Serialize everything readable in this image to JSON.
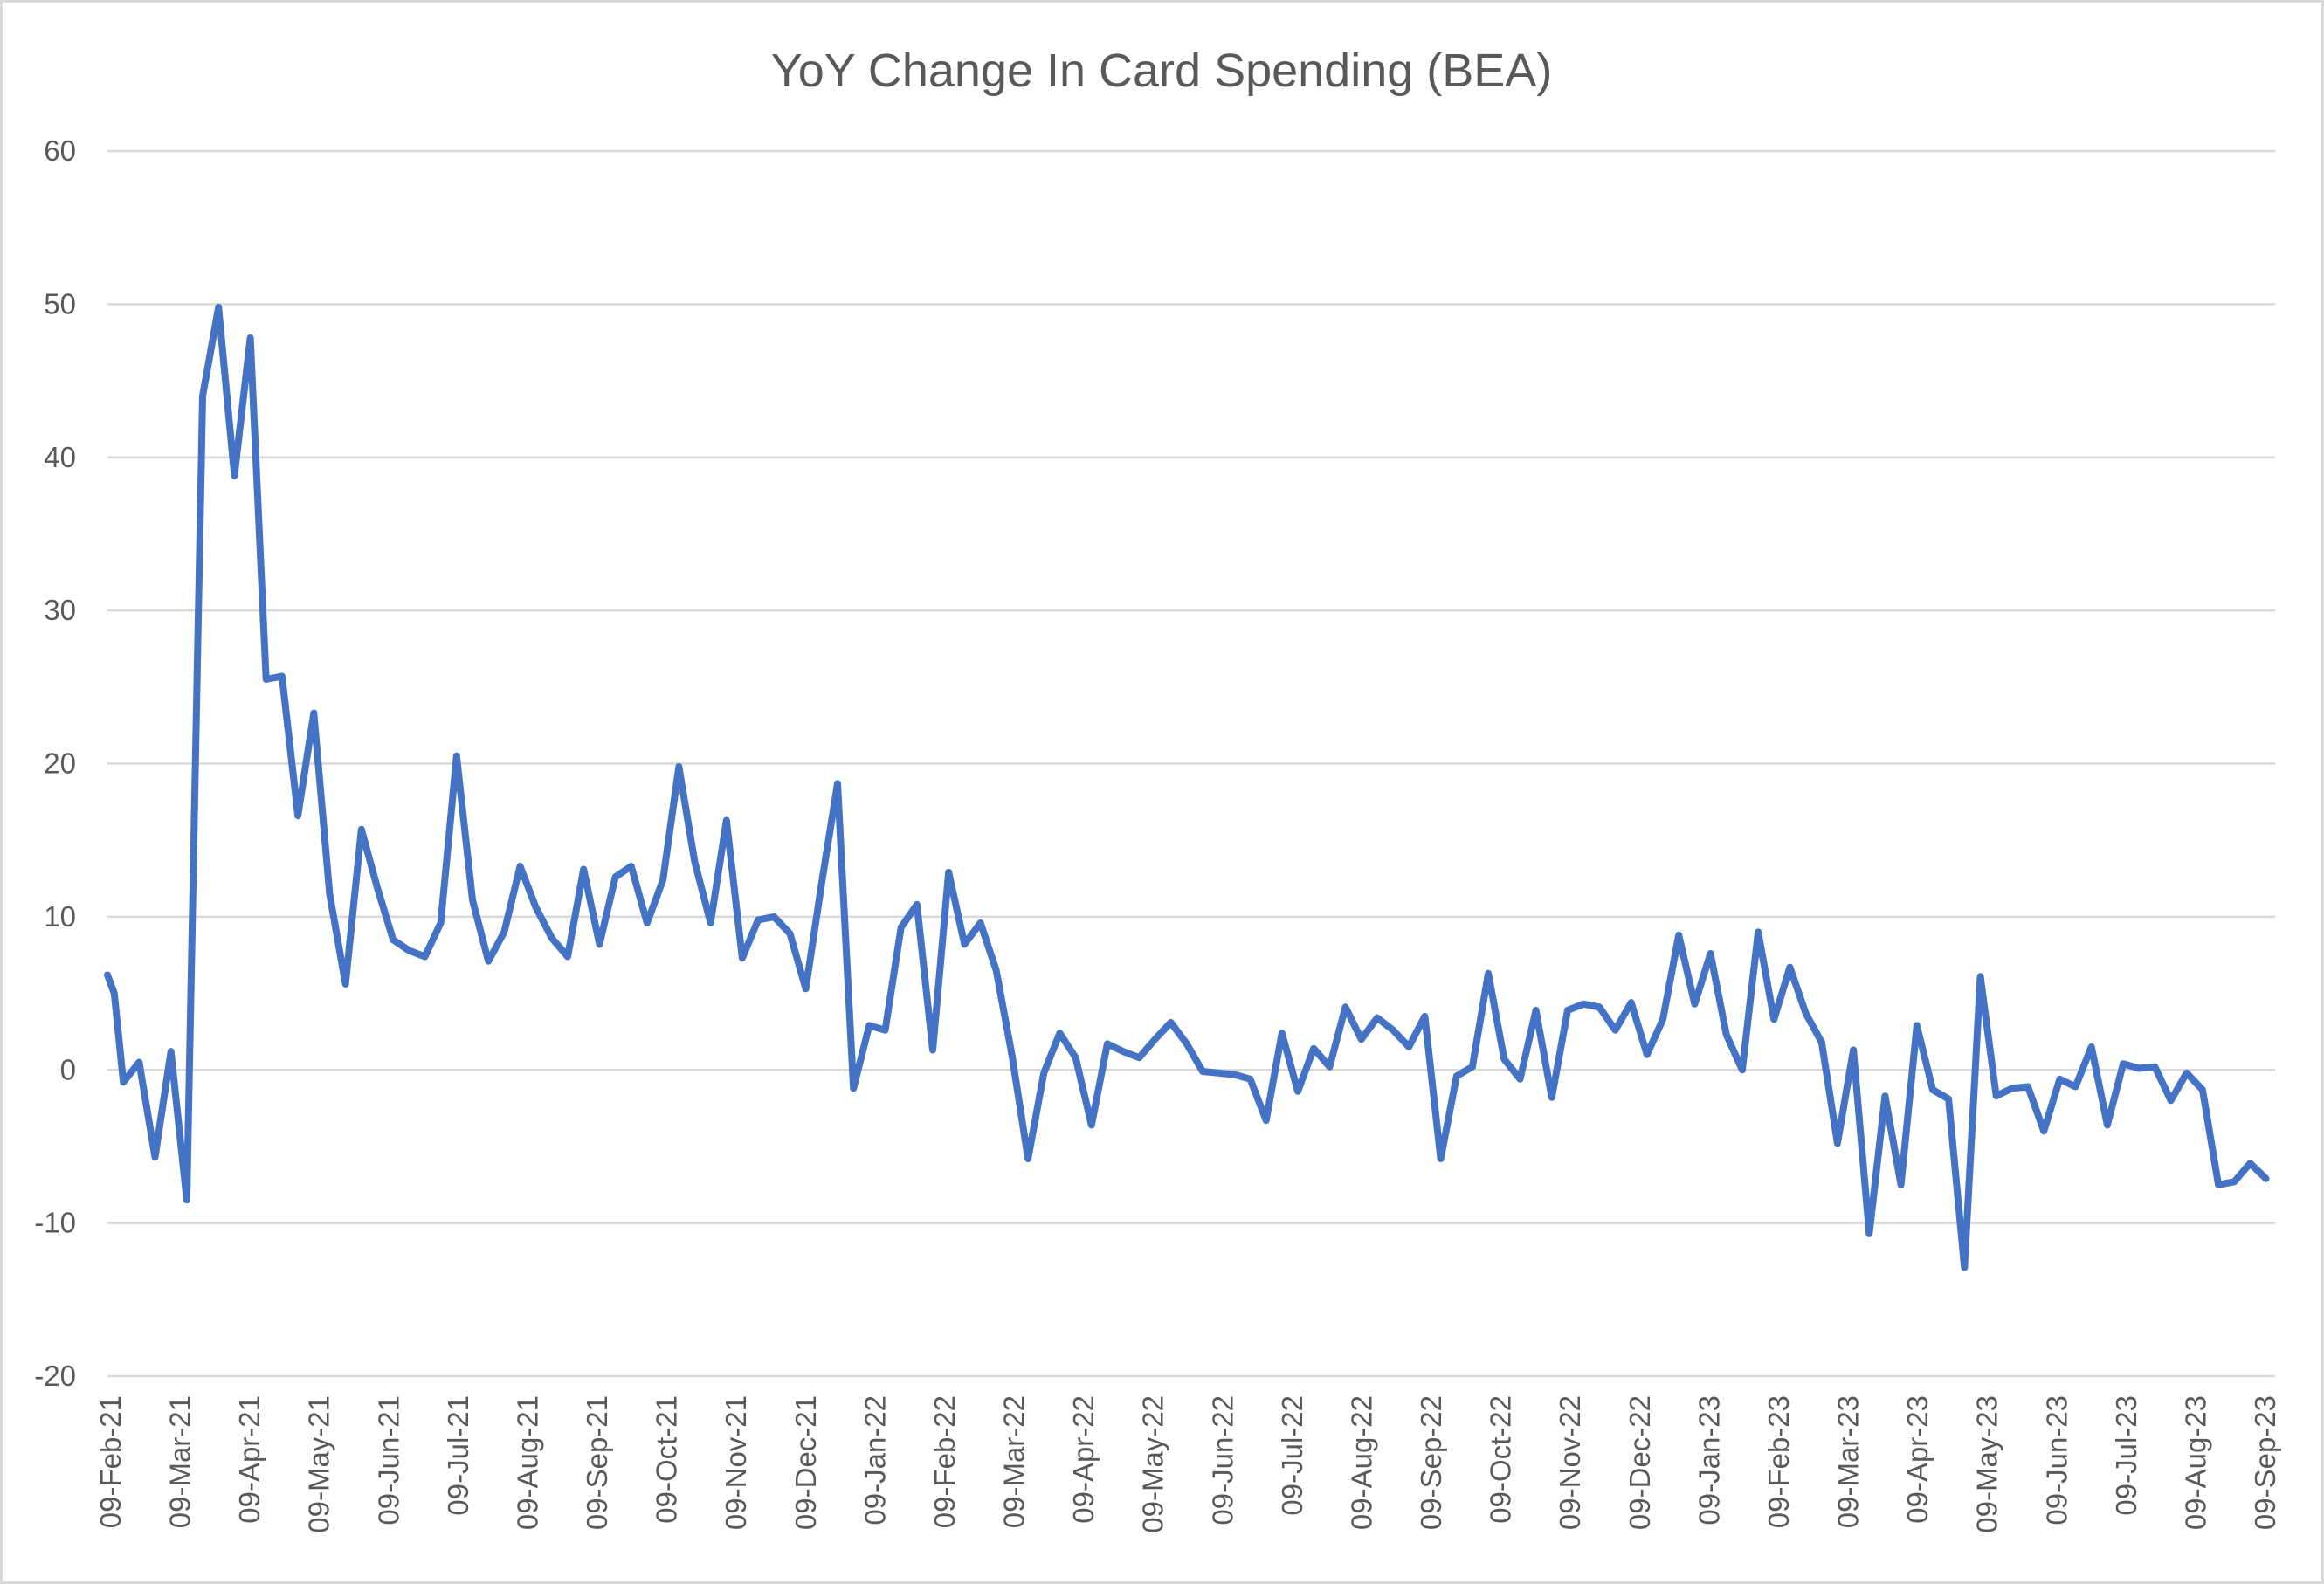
{
  "chart_data": {
    "type": "line",
    "title": "YoY Change In Card Spending (BEA)",
    "xlabel": "",
    "ylabel": "",
    "ylim": [
      -20,
      60
    ],
    "yticks": [
      60,
      50,
      40,
      30,
      20,
      10,
      0,
      -10,
      -20
    ],
    "grid": true,
    "legend": "none",
    "x_tick_labels": [
      "09-Feb-21",
      "09-Mar-21",
      "09-Apr-21",
      "09-May-21",
      "09-Jun-21",
      "09-Jul-21",
      "09-Aug-21",
      "09-Sep-21",
      "09-Oct-21",
      "09-Nov-21",
      "09-Dec-21",
      "09-Jan-22",
      "09-Feb-22",
      "09-Mar-22",
      "09-Apr-22",
      "09-May-22",
      "09-Jun-22",
      "09-Jul-22",
      "09-Aug-22",
      "09-Sep-22",
      "09-Oct-22",
      "09-Nov-22",
      "09-Dec-22",
      "09-Jan-23",
      "09-Feb-23",
      "09-Mar-23",
      "09-Apr-23",
      "09-May-23",
      "09-Jun-23",
      "09-Jul-23",
      "09-Aug-23",
      "09-Sep-23"
    ],
    "x_start": "2021-02-09",
    "x_end": "2023-09-23",
    "series": [
      {
        "name": "",
        "color": "#4472c4",
        "points": [
          [
            "2021-02-09",
            6.2
          ],
          [
            "2021-02-12",
            5.0
          ],
          [
            "2021-02-16",
            -0.8
          ],
          [
            "2021-02-23",
            0.5
          ],
          [
            "2021-03-02",
            -5.7
          ],
          [
            "2021-03-09",
            1.2
          ],
          [
            "2021-03-16",
            -8.5
          ],
          [
            "2021-03-23",
            44.0
          ],
          [
            "2021-03-30",
            49.8
          ],
          [
            "2021-04-06",
            38.8
          ],
          [
            "2021-04-13",
            47.8
          ],
          [
            "2021-04-20",
            25.5
          ],
          [
            "2021-04-27",
            25.7
          ],
          [
            "2021-05-04",
            16.6
          ],
          [
            "2021-05-11",
            23.3
          ],
          [
            "2021-05-18",
            11.5
          ],
          [
            "2021-05-25",
            5.6
          ],
          [
            "2021-06-01",
            15.7
          ],
          [
            "2021-06-08",
            11.9
          ],
          [
            "2021-06-15",
            8.5
          ],
          [
            "2021-06-22",
            7.8
          ],
          [
            "2021-06-29",
            7.4
          ],
          [
            "2021-07-06",
            9.6
          ],
          [
            "2021-07-13",
            20.5
          ],
          [
            "2021-07-20",
            11.1
          ],
          [
            "2021-07-27",
            7.1
          ],
          [
            "2021-08-03",
            9.0
          ],
          [
            "2021-08-10",
            13.3
          ],
          [
            "2021-08-17",
            10.6
          ],
          [
            "2021-08-24",
            8.6
          ],
          [
            "2021-08-31",
            7.4
          ],
          [
            "2021-09-07",
            13.1
          ],
          [
            "2021-09-14",
            8.2
          ],
          [
            "2021-09-21",
            12.6
          ],
          [
            "2021-09-28",
            13.3
          ],
          [
            "2021-10-05",
            9.6
          ],
          [
            "2021-10-12",
            12.4
          ],
          [
            "2021-10-19",
            19.8
          ],
          [
            "2021-10-26",
            13.6
          ],
          [
            "2021-11-02",
            9.6
          ],
          [
            "2021-11-09",
            16.3
          ],
          [
            "2021-11-16",
            7.3
          ],
          [
            "2021-11-23",
            9.8
          ],
          [
            "2021-11-30",
            10.0
          ],
          [
            "2021-12-07",
            8.9
          ],
          [
            "2021-12-14",
            5.3
          ],
          [
            "2021-12-21",
            12.2
          ],
          [
            "2021-12-28",
            18.7
          ],
          [
            "2022-01-04",
            -1.2
          ],
          [
            "2022-01-11",
            2.9
          ],
          [
            "2022-01-18",
            2.6
          ],
          [
            "2022-01-25",
            9.3
          ],
          [
            "2022-02-01",
            10.8
          ],
          [
            "2022-02-08",
            1.3
          ],
          [
            "2022-02-15",
            12.9
          ],
          [
            "2022-02-22",
            8.2
          ],
          [
            "2022-03-01",
            9.6
          ],
          [
            "2022-03-08",
            6.5
          ],
          [
            "2022-03-15",
            0.9
          ],
          [
            "2022-03-22",
            -5.8
          ],
          [
            "2022-03-29",
            -0.2
          ],
          [
            "2022-04-05",
            2.4
          ],
          [
            "2022-04-12",
            0.8
          ],
          [
            "2022-04-19",
            -3.6
          ],
          [
            "2022-04-26",
            1.7
          ],
          [
            "2022-05-03",
            1.2
          ],
          [
            "2022-05-10",
            0.8
          ],
          [
            "2022-05-17",
            2.0
          ],
          [
            "2022-05-24",
            3.1
          ],
          [
            "2022-05-31",
            1.7
          ],
          [
            "2022-06-07",
            -0.1
          ],
          [
            "2022-06-14",
            -0.2
          ],
          [
            "2022-06-21",
            -0.3
          ],
          [
            "2022-06-28",
            -0.6
          ],
          [
            "2022-07-05",
            -3.3
          ],
          [
            "2022-07-12",
            2.4
          ],
          [
            "2022-07-19",
            -1.4
          ],
          [
            "2022-07-26",
            1.4
          ],
          [
            "2022-08-02",
            0.2
          ],
          [
            "2022-08-09",
            4.1
          ],
          [
            "2022-08-16",
            2.0
          ],
          [
            "2022-08-23",
            3.4
          ],
          [
            "2022-08-30",
            2.6
          ],
          [
            "2022-09-06",
            1.5
          ],
          [
            "2022-09-13",
            3.5
          ],
          [
            "2022-09-20",
            -5.8
          ],
          [
            "2022-09-27",
            -0.4
          ],
          [
            "2022-10-04",
            0.2
          ],
          [
            "2022-10-11",
            6.3
          ],
          [
            "2022-10-18",
            0.7
          ],
          [
            "2022-10-25",
            -0.6
          ],
          [
            "2022-11-01",
            3.9
          ],
          [
            "2022-11-08",
            -1.8
          ],
          [
            "2022-11-15",
            3.9
          ],
          [
            "2022-11-22",
            4.3
          ],
          [
            "2022-11-29",
            4.1
          ],
          [
            "2022-12-06",
            2.6
          ],
          [
            "2022-12-13",
            4.4
          ],
          [
            "2022-12-20",
            1.0
          ],
          [
            "2022-12-27",
            3.3
          ],
          [
            "2023-01-03",
            8.8
          ],
          [
            "2023-01-10",
            4.3
          ],
          [
            "2023-01-17",
            7.6
          ],
          [
            "2023-01-24",
            2.3
          ],
          [
            "2023-01-31",
            0.0
          ],
          [
            "2023-02-07",
            9.0
          ],
          [
            "2023-02-14",
            3.3
          ],
          [
            "2023-02-21",
            6.7
          ],
          [
            "2023-02-28",
            3.7
          ],
          [
            "2023-03-07",
            1.8
          ],
          [
            "2023-03-14",
            -4.8
          ],
          [
            "2023-03-21",
            1.3
          ],
          [
            "2023-03-28",
            -10.7
          ],
          [
            "2023-04-04",
            -1.7
          ],
          [
            "2023-04-11",
            -7.5
          ],
          [
            "2023-04-18",
            2.9
          ],
          [
            "2023-04-25",
            -1.3
          ],
          [
            "2023-05-02",
            -1.9
          ],
          [
            "2023-05-09",
            -12.9
          ],
          [
            "2023-05-16",
            6.1
          ],
          [
            "2023-05-23",
            -1.7
          ],
          [
            "2023-05-30",
            -1.2
          ],
          [
            "2023-06-06",
            -1.1
          ],
          [
            "2023-06-13",
            -4.0
          ],
          [
            "2023-06-20",
            -0.6
          ],
          [
            "2023-06-27",
            -1.1
          ],
          [
            "2023-07-04",
            1.5
          ],
          [
            "2023-07-11",
            -3.6
          ],
          [
            "2023-07-18",
            0.4
          ],
          [
            "2023-07-25",
            0.1
          ],
          [
            "2023-08-01",
            0.2
          ],
          [
            "2023-08-08",
            -2.0
          ],
          [
            "2023-08-15",
            -0.2
          ],
          [
            "2023-08-22",
            -1.3
          ],
          [
            "2023-08-29",
            -7.5
          ],
          [
            "2023-09-05",
            -7.3
          ],
          [
            "2023-09-12",
            -6.1
          ],
          [
            "2023-09-19",
            -7.1
          ]
        ]
      }
    ]
  }
}
